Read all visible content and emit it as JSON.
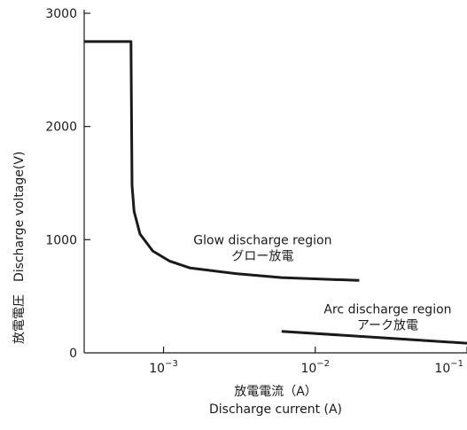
{
  "chart_data": {
    "type": "line",
    "xscale": "log",
    "xlim": [
      0.0003,
      0.1
    ],
    "ylim": [
      0,
      3000
    ],
    "grid": false,
    "legend": "none",
    "xlabel_ja": "放電電流（A）",
    "xlabel_en": "Discharge current (A)",
    "ylabel_ja": "放電電圧",
    "ylabel_en": "Discharge voltage(V)",
    "x_ticks": [
      {
        "value": 0.001,
        "base": "10",
        "exp": "−3"
      },
      {
        "value": 0.01,
        "base": "10",
        "exp": "−2"
      },
      {
        "value": 0.1,
        "base": "10",
        "exp": "−1"
      }
    ],
    "y_ticks": [
      {
        "value": 0,
        "label": "0"
      },
      {
        "value": 1000,
        "label": "1000"
      },
      {
        "value": 2000,
        "label": "2000"
      },
      {
        "value": 3000,
        "label": "3000"
      }
    ],
    "series": [
      {
        "x": [
          0.0003,
          0.00061,
          0.00062,
          0.00064,
          0.0007,
          0.00085,
          0.0011,
          0.0015,
          0.003,
          0.006,
          0.0195
        ],
        "y": [
          2750,
          2750,
          1480,
          1250,
          1050,
          900,
          810,
          750,
          700,
          665,
          640
        ]
      },
      {
        "x": [
          0.006,
          0.1
        ],
        "y": [
          190,
          85
        ]
      }
    ],
    "annotations": [
      {
        "text_en": "Glow discharge region",
        "text_ja": "グロー放電",
        "x": 0.0045,
        "y": 960
      },
      {
        "text_en": "Arc discharge region",
        "text_ja": "アーク放電",
        "x": 0.03,
        "y": 350
      }
    ]
  }
}
